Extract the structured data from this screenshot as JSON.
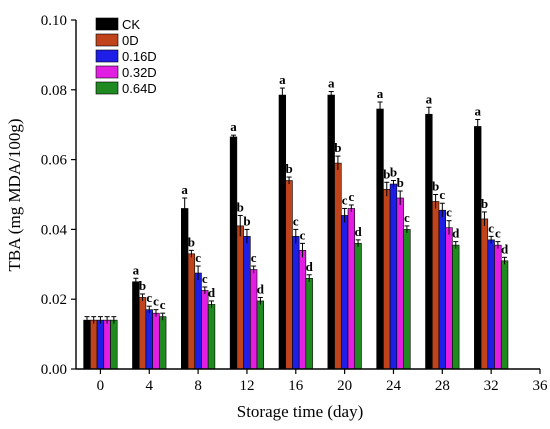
{
  "chart_data": {
    "type": "bar",
    "title": "",
    "xlabel": "Storage time (day)",
    "ylabel": "TBA (mg MDA/100g)",
    "x_ticks": [
      "0",
      "4",
      "8",
      "12",
      "16",
      "20",
      "24",
      "28",
      "32",
      "36"
    ],
    "x_lim": [
      -2,
      36
    ],
    "y_ticks": [
      "0.00",
      "0.02",
      "0.04",
      "0.06",
      "0.08",
      "0.10"
    ],
    "ylim": [
      0,
      0.1
    ],
    "grid": false,
    "legend_position": "top-left",
    "categories": [
      0,
      4,
      8,
      12,
      16,
      20,
      24,
      28,
      32
    ],
    "series": [
      {
        "name": "CK",
        "color": "#000000",
        "values": [
          0.014,
          0.025,
          0.046,
          0.0665,
          0.0785,
          0.0785,
          0.0745,
          0.073,
          0.0695
        ],
        "errors": [
          0.001,
          0.001,
          0.003,
          0.0005,
          0.002,
          0.001,
          0.002,
          0.002,
          0.002
        ],
        "labels": [
          "",
          "a",
          "a",
          "a",
          "a",
          "a",
          "a",
          "a",
          "a"
        ]
      },
      {
        "name": "0D",
        "color": "#c0431c",
        "values": [
          0.014,
          0.0205,
          0.033,
          0.041,
          0.054,
          0.059,
          0.0515,
          0.048,
          0.043
        ],
        "errors": [
          0.001,
          0.001,
          0.001,
          0.003,
          0.001,
          0.002,
          0.002,
          0.002,
          0.002
        ],
        "labels": [
          "",
          "b",
          "b",
          "b",
          "b",
          "b",
          "b",
          "b",
          "b"
        ]
      },
      {
        "name": "0.16D",
        "color": "#1e1ee6",
        "values": [
          0.014,
          0.017,
          0.0275,
          0.038,
          0.038,
          0.044,
          0.053,
          0.0455,
          0.037
        ],
        "errors": [
          0.001,
          0.001,
          0.002,
          0.002,
          0.002,
          0.002,
          0.001,
          0.002,
          0.001
        ],
        "labels": [
          "",
          "c",
          "c",
          "b",
          "c",
          "c",
          "b",
          "c",
          "c"
        ]
      },
      {
        "name": "0.32D",
        "color": "#e21ee2",
        "values": [
          0.014,
          0.016,
          0.0225,
          0.0285,
          0.034,
          0.046,
          0.049,
          0.0405,
          0.0355
        ],
        "errors": [
          0.001,
          0.001,
          0.001,
          0.001,
          0.002,
          0.001,
          0.002,
          0.002,
          0.001
        ],
        "labels": [
          "",
          "c",
          "c",
          "c",
          "c",
          "c",
          "b",
          "c",
          "c"
        ]
      },
      {
        "name": "0.64D",
        "color": "#1f8a1f",
        "values": [
          0.014,
          0.015,
          0.0185,
          0.0195,
          0.026,
          0.036,
          0.04,
          0.0355,
          0.031
        ],
        "errors": [
          0.001,
          0.001,
          0.001,
          0.001,
          0.001,
          0.001,
          0.001,
          0.001,
          0.001
        ],
        "labels": [
          "",
          "c",
          "d",
          "d",
          "d",
          "d",
          "c",
          "d",
          "d"
        ]
      }
    ]
  }
}
